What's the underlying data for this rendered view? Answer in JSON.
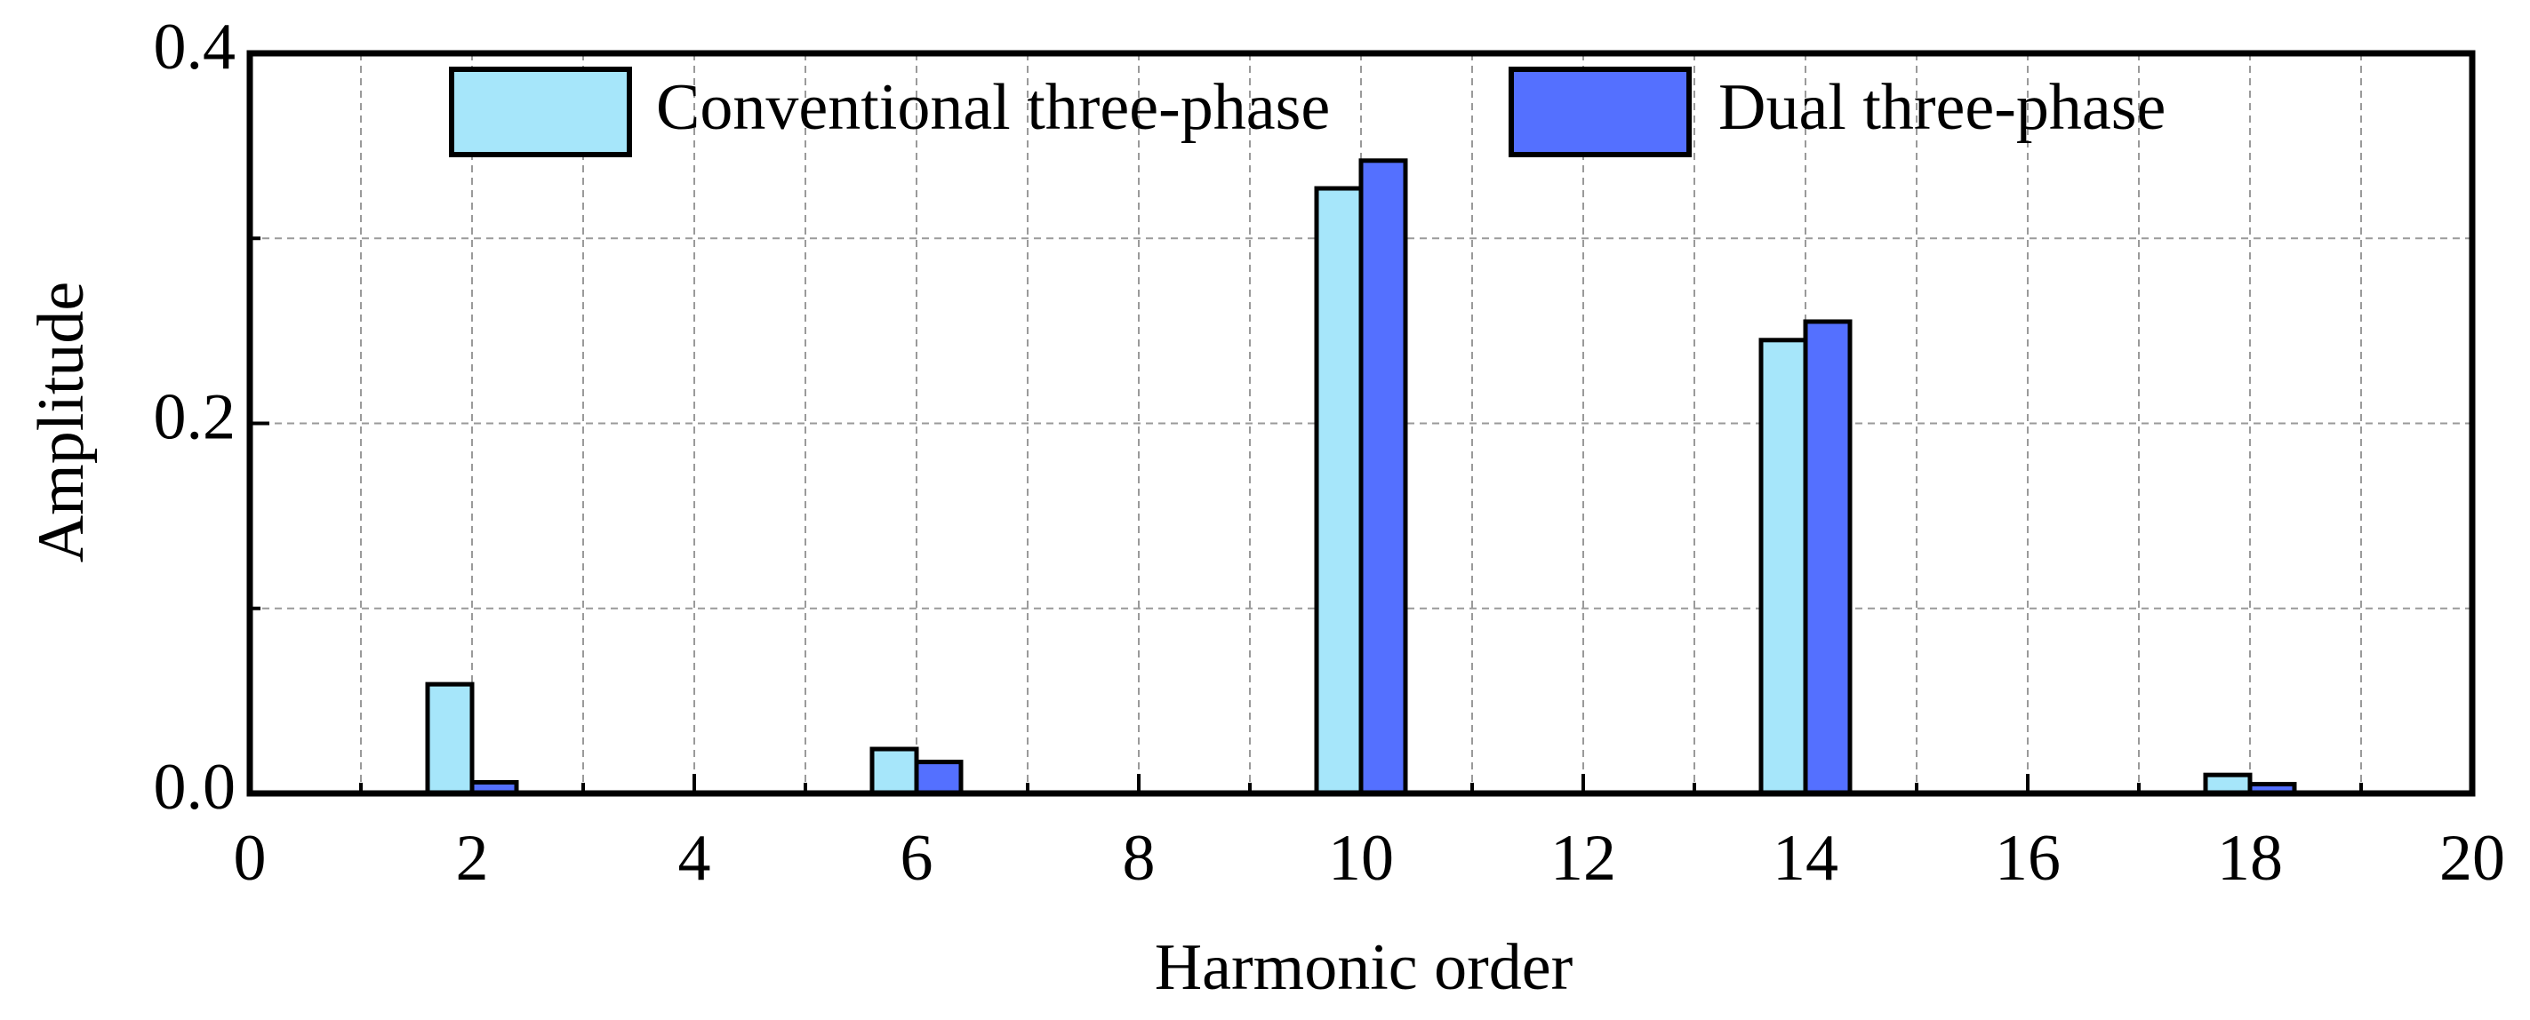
{
  "chart_data": {
    "type": "bar",
    "x_label": "Harmonic order",
    "y_label": "Amplitude",
    "x": [
      2,
      6,
      10,
      14,
      18
    ],
    "series": [
      {
        "name": "Conventional three-phase",
        "color": "#a6e6fa",
        "values": [
          0.059,
          0.024,
          0.327,
          0.245,
          0.01
        ]
      },
      {
        "name": "Dual three-phase",
        "color": "#5470ff",
        "values": [
          0.006,
          0.017,
          0.342,
          0.255,
          0.005
        ]
      }
    ],
    "xlim": [
      0,
      20
    ],
    "xticks": [
      0,
      2,
      4,
      6,
      8,
      10,
      12,
      14,
      16,
      18,
      20
    ],
    "xminorticks": [
      1,
      3,
      5,
      7,
      9,
      11,
      13,
      15,
      17,
      19
    ],
    "ylim": [
      0,
      0.4
    ],
    "yticks": [
      {
        "value": 0,
        "label": "0.0"
      },
      0.2,
      0.4
    ],
    "yminorticks": [
      0.1,
      0.3
    ],
    "grid": true,
    "legend": "top"
  }
}
